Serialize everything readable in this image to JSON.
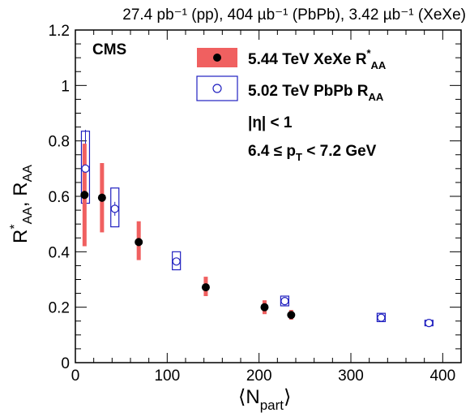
{
  "chart_data": {
    "type": "scatter",
    "header": "27.4 pb⁻¹ (pp), 404 µb⁻¹ (PbPb), 3.42 µb⁻¹ (XeXe)",
    "experiment_label": "CMS",
    "xlabel": {
      "main": "⟨N",
      "sub": "part",
      "close": "⟩"
    },
    "ylabel": {
      "r1": "R",
      "r1_sup": "*",
      "r1_sub": "AA",
      "sep": ", ",
      "r2": "R",
      "r2_sub": "AA"
    },
    "xlim": [
      0,
      420
    ],
    "ylim": [
      0,
      1.2
    ],
    "x_ticks": [
      "0",
      "100",
      "200",
      "300",
      "400"
    ],
    "y_ticks": [
      "0",
      "0.2",
      "0.4",
      "0.6",
      "0.8",
      "1",
      "1.2"
    ],
    "grid": false,
    "legend_position": "top-right",
    "legend": [
      {
        "pre": "5.44 TeV XeXe R",
        "sup": "*",
        "sub": "AA"
      },
      {
        "pre": "5.02 TeV PbPb R",
        "sup": "",
        "sub": "AA"
      }
    ],
    "annotations": {
      "eta": "|η| < 1",
      "pt": {
        "pre": "6.4  ≤ p",
        "sub": "T",
        "post": " < 7.2 GeV"
      }
    },
    "colors": {
      "xexe_marker": "#000000",
      "xexe_sys": "#f06060",
      "xexe_legend_fill": "#f06060",
      "pbpb": "#2020c0"
    },
    "series": [
      {
        "name": "5.44 TeV XeXe R*AA",
        "marker": "filled-circle",
        "points": [
          {
            "x": 10,
            "y": 0.605,
            "sys_lo": 0.42,
            "sys_hi": 0.79,
            "stat_lo": 0.59,
            "stat_hi": 0.62
          },
          {
            "x": 29,
            "y": 0.595,
            "sys_lo": 0.47,
            "sys_hi": 0.72,
            "stat_lo": 0.58,
            "stat_hi": 0.61
          },
          {
            "x": 69,
            "y": 0.435,
            "sys_lo": 0.37,
            "sys_hi": 0.51,
            "stat_lo": 0.42,
            "stat_hi": 0.45
          },
          {
            "x": 142,
            "y": 0.272,
            "sys_lo": 0.24,
            "sys_hi": 0.31,
            "stat_lo": 0.262,
            "stat_hi": 0.282
          },
          {
            "x": 206,
            "y": 0.2,
            "sys_lo": 0.175,
            "sys_hi": 0.225,
            "stat_lo": 0.19,
            "stat_hi": 0.21
          },
          {
            "x": 235,
            "y": 0.172,
            "sys_lo": 0.155,
            "sys_hi": 0.19,
            "stat_lo": 0.164,
            "stat_hi": 0.18
          }
        ]
      },
      {
        "name": "5.02 TeV PbPb RAA",
        "marker": "open-circle",
        "points": [
          {
            "x": 11,
            "y": 0.7,
            "sys_lo": 0.575,
            "sys_hi": 0.835,
            "stat_lo": 0.56,
            "stat_hi": 0.84
          },
          {
            "x": 43,
            "y": 0.555,
            "sys_lo": 0.49,
            "sys_hi": 0.63,
            "stat_lo": 0.53,
            "stat_hi": 0.58
          },
          {
            "x": 110,
            "y": 0.365,
            "sys_lo": 0.335,
            "sys_hi": 0.4,
            "stat_lo": 0.355,
            "stat_hi": 0.375
          },
          {
            "x": 228,
            "y": 0.222,
            "sys_lo": 0.205,
            "sys_hi": 0.24,
            "stat_lo": 0.215,
            "stat_hi": 0.229
          },
          {
            "x": 333,
            "y": 0.162,
            "sys_lo": 0.148,
            "sys_hi": 0.178,
            "stat_lo": 0.156,
            "stat_hi": 0.168
          },
          {
            "x": 385,
            "y": 0.143,
            "sys_lo": 0.133,
            "sys_hi": 0.153,
            "stat_lo": 0.138,
            "stat_hi": 0.148
          }
        ]
      }
    ]
  }
}
